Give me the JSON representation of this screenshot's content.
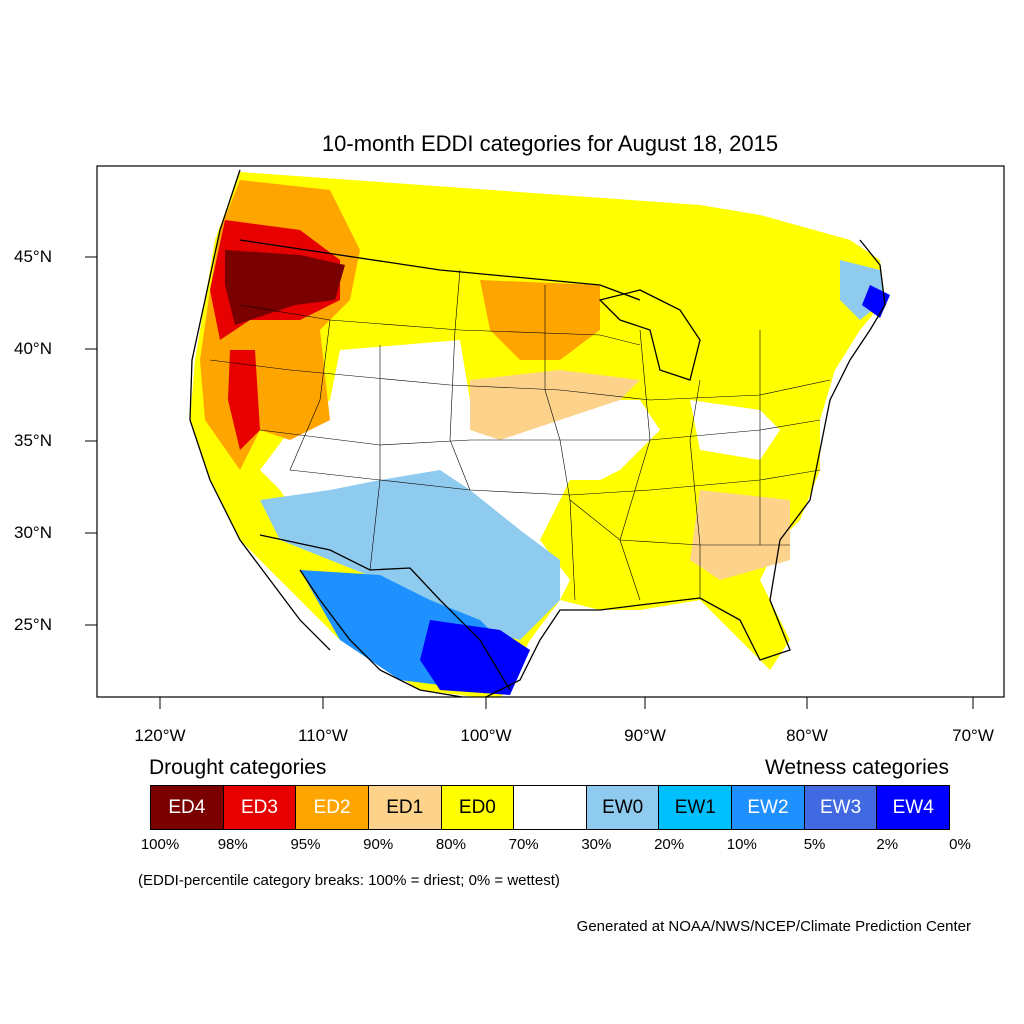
{
  "title": "10-month EDDI categories for August 18, 2015",
  "lat_labels": [
    "45°N",
    "40°N",
    "35°N",
    "30°N",
    "25°N"
  ],
  "lon_labels": [
    "120°W",
    "110°W",
    "100°W",
    "90°W",
    "80°W",
    "70°W"
  ],
  "legend": {
    "drought_title": "Drought categories",
    "wetness_title": "Wetness categories",
    "categories": [
      {
        "label": "ED4",
        "color": "#7a0000",
        "text_color": "#ffffff"
      },
      {
        "label": "ED3",
        "color": "#e60000",
        "text_color": "#ffffff"
      },
      {
        "label": "ED2",
        "color": "#ffa500",
        "text_color": "#ffffff"
      },
      {
        "label": "ED1",
        "color": "#fdd38c",
        "text_color": "#000000"
      },
      {
        "label": "ED0",
        "color": "#ffff00",
        "text_color": "#000000"
      },
      {
        "label": "",
        "color": "#ffffff",
        "text_color": "#000000"
      },
      {
        "label": "EW0",
        "color": "#8ecbee",
        "text_color": "#000000"
      },
      {
        "label": "EW1",
        "color": "#00bfff",
        "text_color": "#000000"
      },
      {
        "label": "EW2",
        "color": "#1e90ff",
        "text_color": "#ffffff"
      },
      {
        "label": "EW3",
        "color": "#4169e1",
        "text_color": "#ffffff"
      },
      {
        "label": "EW4",
        "color": "#0000ff",
        "text_color": "#ffffff"
      }
    ],
    "percentiles": [
      "100%",
      "98%",
      "95%",
      "90%",
      "80%",
      "70%",
      "30%",
      "20%",
      "10%",
      "5%",
      "2%",
      "0%"
    ]
  },
  "note": "(EDDI-percentile category breaks: 100% = driest; 0% = wettest)",
  "credit": "Generated at NOAA/NWS/NCEP/Climate Prediction Center"
}
